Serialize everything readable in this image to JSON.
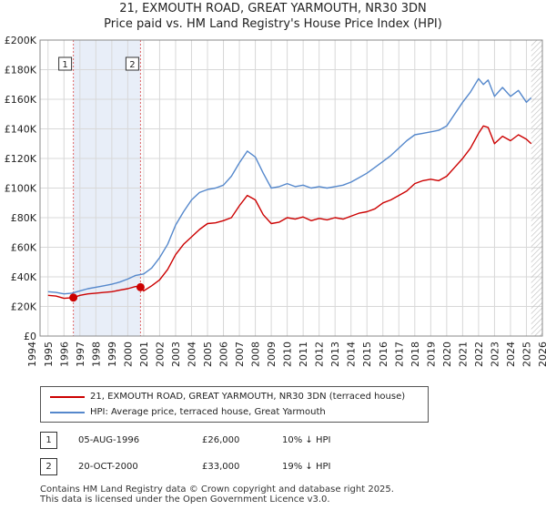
{
  "chart_data": {
    "type": "line",
    "title": "21, EXMOUTH ROAD, GREAT YARMOUTH, NR30 3DN",
    "subtitle": "Price paid vs. HM Land Registry's House Price Index (HPI)",
    "xlim": [
      1994.5,
      2026
    ],
    "ylim": [
      0,
      200000
    ],
    "yticks": [
      0,
      20000,
      40000,
      60000,
      80000,
      100000,
      120000,
      140000,
      160000,
      180000,
      200000
    ],
    "ytick_labels": [
      "£0",
      "£20K",
      "£40K",
      "£60K",
      "£80K",
      "£100K",
      "£120K",
      "£140K",
      "£160K",
      "£180K",
      "£200K"
    ],
    "xticks": [
      1994,
      1995,
      1996,
      1997,
      1998,
      1999,
      2000,
      2001,
      2002,
      2003,
      2004,
      2005,
      2006,
      2007,
      2008,
      2009,
      2010,
      2011,
      2012,
      2013,
      2014,
      2015,
      2016,
      2017,
      2018,
      2019,
      2020,
      2021,
      2022,
      2023,
      2024,
      2025,
      2026
    ],
    "xtick_labels": [
      "1994",
      "1995",
      "1996",
      "1997",
      "1998",
      "1999",
      "2000",
      "2001",
      "2002",
      "2003",
      "2004",
      "2005",
      "2006",
      "2007",
      "2008",
      "2009",
      "2010",
      "2011",
      "2012",
      "2013",
      "2014",
      "2015",
      "2016",
      "2017",
      "2018",
      "2019",
      "2020",
      "2021",
      "2022",
      "2023",
      "2024",
      "2025",
      "2026"
    ],
    "grid": true,
    "series": [
      {
        "name": "21, EXMOUTH ROAD, GREAT YARMOUTH, NR30 3DN (terraced house)",
        "color": "#cc0000",
        "x": [
          1995.0,
          1995.5,
          1996.0,
          1996.59,
          1997.0,
          1997.5,
          1998.0,
          1998.5,
          1999.0,
          1999.5,
          2000.0,
          2000.5,
          2000.8,
          2001.0,
          2001.5,
          2002.0,
          2002.5,
          2003.0,
          2003.5,
          2004.0,
          2004.5,
          2005.0,
          2005.5,
          2006.0,
          2006.5,
          2007.0,
          2007.5,
          2008.0,
          2008.5,
          2009.0,
          2009.5,
          2010.0,
          2010.5,
          2011.0,
          2011.5,
          2012.0,
          2012.5,
          2013.0,
          2013.5,
          2014.0,
          2014.5,
          2015.0,
          2015.5,
          2016.0,
          2016.5,
          2017.0,
          2017.5,
          2018.0,
          2018.5,
          2019.0,
          2019.5,
          2020.0,
          2020.5,
          2021.0,
          2021.5,
          2022.0,
          2022.3,
          2022.6,
          2023.0,
          2023.5,
          2024.0,
          2024.5,
          2025.0,
          2025.3
        ],
        "y": [
          27500,
          27000,
          25500,
          26000,
          27500,
          28500,
          29000,
          29500,
          30000,
          31000,
          32000,
          33500,
          33000,
          30500,
          34000,
          38000,
          45000,
          55000,
          62000,
          67000,
          72000,
          76000,
          76500,
          78000,
          80000,
          88000,
          95000,
          92000,
          82000,
          76000,
          77000,
          80000,
          79000,
          80500,
          78000,
          79500,
          78500,
          80000,
          79000,
          81000,
          83000,
          84000,
          86000,
          90000,
          92000,
          95000,
          98000,
          103000,
          105000,
          106000,
          105000,
          108000,
          114000,
          120000,
          127000,
          137000,
          142000,
          141000,
          130000,
          135000,
          132000,
          136000,
          133000,
          130000
        ]
      },
      {
        "name": "HPI: Average price, terraced house, Great Yarmouth",
        "color": "#5588cc",
        "x": [
          1995.0,
          1995.5,
          1996.0,
          1996.5,
          1997.0,
          1997.5,
          1998.0,
          1998.5,
          1999.0,
          1999.5,
          2000.0,
          2000.5,
          2001.0,
          2001.5,
          2002.0,
          2002.5,
          2003.0,
          2003.5,
          2004.0,
          2004.5,
          2005.0,
          2005.5,
          2006.0,
          2006.5,
          2007.0,
          2007.5,
          2008.0,
          2008.5,
          2009.0,
          2009.5,
          2010.0,
          2010.5,
          2011.0,
          2011.5,
          2012.0,
          2012.5,
          2013.0,
          2013.5,
          2014.0,
          2014.5,
          2015.0,
          2015.5,
          2016.0,
          2016.5,
          2017.0,
          2017.5,
          2018.0,
          2018.5,
          2019.0,
          2019.5,
          2020.0,
          2020.5,
          2021.0,
          2021.5,
          2022.0,
          2022.3,
          2022.6,
          2023.0,
          2023.5,
          2024.0,
          2024.5,
          2025.0,
          2025.3
        ],
        "y": [
          30000,
          29500,
          28500,
          29000,
          30500,
          32000,
          33000,
          34000,
          35000,
          36500,
          38500,
          41000,
          42000,
          46000,
          53000,
          62000,
          75000,
          84000,
          92000,
          97000,
          99000,
          100000,
          102000,
          108000,
          117000,
          125000,
          121000,
          110000,
          100000,
          101000,
          103000,
          101000,
          102000,
          100000,
          101000,
          100000,
          101000,
          102000,
          104000,
          107000,
          110000,
          114000,
          118000,
          122000,
          127000,
          132000,
          136000,
          137000,
          138000,
          139000,
          142000,
          150000,
          158000,
          165000,
          174000,
          170000,
          173000,
          162000,
          168000,
          162000,
          166000,
          158000,
          161000
        ]
      }
    ],
    "markers": [
      {
        "label": "1",
        "x": 1996.59,
        "y": 26000
      },
      {
        "label": "2",
        "x": 2000.8,
        "y": 33000
      }
    ],
    "forecast_start": 2025.3
  },
  "legend": {
    "property_label": "21, EXMOUTH ROAD, GREAT YARMOUTH, NR30 3DN (terraced house)",
    "hpi_label": "HPI: Average price, terraced house, Great Yarmouth"
  },
  "transactions": [
    {
      "num": "1",
      "date": "05-AUG-1996",
      "price": "£26,000",
      "hpi": "10% ↓ HPI"
    },
    {
      "num": "2",
      "date": "20-OCT-2000",
      "price": "£33,000",
      "hpi": "19% ↓ HPI"
    }
  ],
  "footer": {
    "line1": "Contains HM Land Registry data © Crown copyright and database right 2025.",
    "line2": "This data is licensed under the Open Government Licence v3.0."
  },
  "colors": {
    "property": "#cc0000",
    "hpi": "#5588cc",
    "shade": "#e8eef8",
    "grid": "#d8d8d8"
  }
}
